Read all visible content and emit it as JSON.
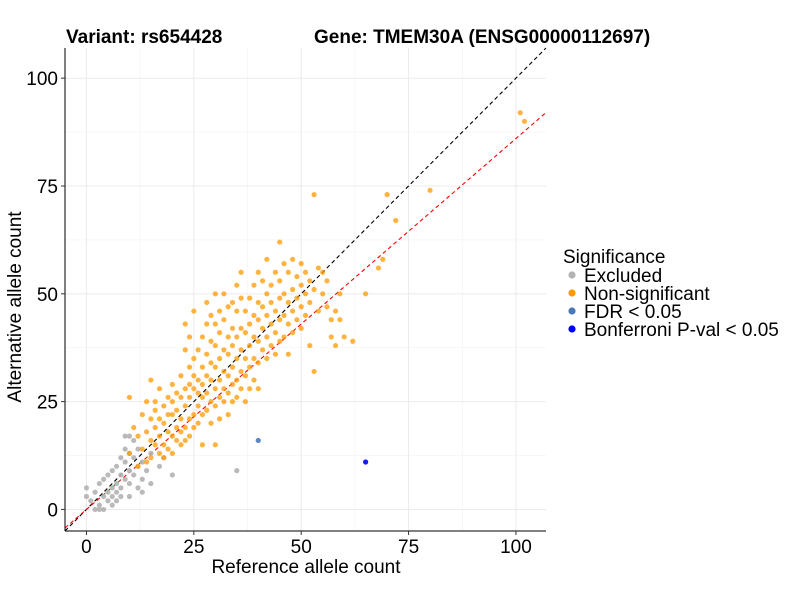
{
  "chart_data": {
    "type": "scatter",
    "title_left": "Variant: rs654428",
    "title_right": "Gene: TMEM30A (ENSG00000112697)",
    "xlabel": "Reference allele count",
    "ylabel": "Alternative allele count",
    "xlim": [
      -5,
      107
    ],
    "ylim": [
      -5,
      107
    ],
    "x_ticks": [
      0,
      25,
      50,
      75,
      100
    ],
    "y_ticks": [
      0,
      25,
      50,
      75,
      100
    ],
    "reference_lines": [
      {
        "name": "identity",
        "slope": 1,
        "intercept": 0,
        "color": "#000000",
        "style": "dashed"
      },
      {
        "name": "fitted",
        "slope": 0.86,
        "intercept": 0,
        "color": "#ff0000",
        "style": "dashed"
      }
    ],
    "legend": {
      "title": "Significance",
      "entries": [
        {
          "label": "Excluded",
          "color": "#b3b3b3"
        },
        {
          "label": "Non-significant",
          "color": "#ff9900"
        },
        {
          "label": "FDR < 0.05",
          "color": "#4a78b8"
        },
        {
          "label": "Bonferroni P-val < 0.05",
          "color": "#0000ff"
        }
      ]
    },
    "series": [
      {
        "name": "Excluded",
        "color": "#b3b3b3",
        "points": [
          [
            0,
            3
          ],
          [
            0,
            5
          ],
          [
            1,
            2
          ],
          [
            2,
            0
          ],
          [
            2,
            4
          ],
          [
            3,
            1
          ],
          [
            3,
            6
          ],
          [
            3,
            0
          ],
          [
            4,
            0
          ],
          [
            4,
            3
          ],
          [
            4,
            7
          ],
          [
            5,
            4
          ],
          [
            5,
            2
          ],
          [
            5,
            8
          ],
          [
            6,
            5
          ],
          [
            6,
            3
          ],
          [
            6,
            9
          ],
          [
            6,
            1
          ],
          [
            7,
            6
          ],
          [
            7,
            4
          ],
          [
            7,
            10
          ],
          [
            7,
            2
          ],
          [
            8,
            8
          ],
          [
            8,
            5
          ],
          [
            8,
            12
          ],
          [
            8,
            3
          ],
          [
            9,
            7
          ],
          [
            9,
            11
          ],
          [
            9,
            14
          ],
          [
            9,
            17
          ],
          [
            10,
            6
          ],
          [
            10,
            9
          ],
          [
            10,
            13
          ],
          [
            10,
            17
          ],
          [
            10,
            3
          ],
          [
            11,
            8
          ],
          [
            11,
            12
          ],
          [
            11,
            16
          ],
          [
            12,
            5
          ],
          [
            12,
            10
          ],
          [
            12,
            14
          ],
          [
            13,
            4
          ],
          [
            13,
            7
          ],
          [
            13,
            11
          ],
          [
            14,
            9
          ],
          [
            15,
            6
          ],
          [
            15,
            13
          ],
          [
            17,
            10
          ],
          [
            18,
            12
          ],
          [
            20,
            8
          ],
          [
            35,
            9
          ]
        ]
      },
      {
        "name": "Non-significant",
        "color": "#ff9900",
        "points": [
          [
            10,
            26
          ],
          [
            10,
            13
          ],
          [
            11,
            19
          ],
          [
            12,
            10
          ],
          [
            12,
            17
          ],
          [
            13,
            22
          ],
          [
            13,
            14
          ],
          [
            14,
            25
          ],
          [
            14,
            18
          ],
          [
            14,
            11
          ],
          [
            15,
            21
          ],
          [
            15,
            16
          ],
          [
            15,
            30
          ],
          [
            15,
            12
          ],
          [
            16,
            23
          ],
          [
            16,
            15
          ],
          [
            16,
            19
          ],
          [
            16,
            25
          ],
          [
            17,
            17
          ],
          [
            17,
            13
          ],
          [
            17,
            28
          ],
          [
            17,
            21
          ],
          [
            18,
            20
          ],
          [
            18,
            15
          ],
          [
            18,
            24
          ],
          [
            18,
            12
          ],
          [
            19,
            18
          ],
          [
            19,
            26
          ],
          [
            19,
            14
          ],
          [
            19,
            22
          ],
          [
            20,
            22
          ],
          [
            20,
            17
          ],
          [
            20,
            29
          ],
          [
            20,
            13
          ],
          [
            20,
            25
          ],
          [
            21,
            19
          ],
          [
            21,
            16
          ],
          [
            21,
            27
          ],
          [
            21,
            23
          ],
          [
            22,
            21
          ],
          [
            22,
            15
          ],
          [
            22,
            31
          ],
          [
            22,
            26
          ],
          [
            22,
            18
          ],
          [
            23,
            24
          ],
          [
            23,
            19
          ],
          [
            23,
            37
          ],
          [
            23,
            28
          ],
          [
            23,
            16
          ],
          [
            23,
            43
          ],
          [
            24,
            26
          ],
          [
            24,
            21
          ],
          [
            24,
            33
          ],
          [
            24,
            17
          ],
          [
            24,
            29
          ],
          [
            24,
            40
          ],
          [
            25,
            28
          ],
          [
            25,
            22
          ],
          [
            25,
            35
          ],
          [
            25,
            19
          ],
          [
            25,
            31
          ],
          [
            25,
            46
          ],
          [
            26,
            24
          ],
          [
            26,
            30
          ],
          [
            26,
            20
          ],
          [
            26,
            37
          ],
          [
            26,
            27
          ],
          [
            27,
            26
          ],
          [
            27,
            33
          ],
          [
            27,
            22
          ],
          [
            27,
            40
          ],
          [
            27,
            29
          ],
          [
            27,
            15
          ],
          [
            28,
            31
          ],
          [
            28,
            27
          ],
          [
            28,
            36
          ],
          [
            28,
            23
          ],
          [
            28,
            43
          ],
          [
            28,
            48
          ],
          [
            29,
            30
          ],
          [
            29,
            25
          ],
          [
            29,
            34
          ],
          [
            29,
            39
          ],
          [
            29,
            20
          ],
          [
            29,
            45
          ],
          [
            30,
            33
          ],
          [
            30,
            28
          ],
          [
            30,
            38
          ],
          [
            30,
            24
          ],
          [
            30,
            43
          ],
          [
            30,
            50
          ],
          [
            30,
            15
          ],
          [
            31,
            35
          ],
          [
            31,
            30
          ],
          [
            31,
            26
          ],
          [
            31,
            41
          ],
          [
            31,
            46
          ],
          [
            31,
            21
          ],
          [
            32,
            32
          ],
          [
            32,
            37
          ],
          [
            32,
            28
          ],
          [
            32,
            44
          ],
          [
            32,
            25
          ],
          [
            32,
            50
          ],
          [
            33,
            36
          ],
          [
            33,
            31
          ],
          [
            33,
            40
          ],
          [
            33,
            27
          ],
          [
            33,
            47
          ],
          [
            33,
            22
          ],
          [
            34,
            38
          ],
          [
            34,
            33
          ],
          [
            34,
            42
          ],
          [
            34,
            29
          ],
          [
            34,
            48
          ],
          [
            34,
            25
          ],
          [
            35,
            40
          ],
          [
            35,
            35
          ],
          [
            35,
            30
          ],
          [
            35,
            46
          ],
          [
            35,
            26
          ],
          [
            35,
            52
          ],
          [
            36,
            37
          ],
          [
            36,
            42
          ],
          [
            36,
            32
          ],
          [
            36,
            28
          ],
          [
            36,
            49
          ],
          [
            36,
            55
          ],
          [
            37,
            41
          ],
          [
            37,
            35
          ],
          [
            37,
            46
          ],
          [
            37,
            31
          ],
          [
            37,
            25
          ],
          [
            38,
            43
          ],
          [
            38,
            38
          ],
          [
            38,
            33
          ],
          [
            38,
            49
          ],
          [
            38,
            28
          ],
          [
            39,
            45
          ],
          [
            39,
            40
          ],
          [
            39,
            35
          ],
          [
            39,
            52
          ],
          [
            39,
            30
          ],
          [
            40,
            44
          ],
          [
            40,
            39
          ],
          [
            40,
            34
          ],
          [
            40,
            55
          ],
          [
            40,
            48
          ],
          [
            40,
            28
          ],
          [
            41,
            47
          ],
          [
            41,
            42
          ],
          [
            41,
            37
          ],
          [
            41,
            53
          ],
          [
            42,
            45
          ],
          [
            42,
            40
          ],
          [
            42,
            35
          ],
          [
            42,
            50
          ],
          [
            42,
            58
          ],
          [
            43,
            48
          ],
          [
            43,
            43
          ],
          [
            43,
            38
          ],
          [
            43,
            52
          ],
          [
            44,
            46
          ],
          [
            44,
            41
          ],
          [
            44,
            36
          ],
          [
            44,
            55
          ],
          [
            45,
            49
          ],
          [
            45,
            44
          ],
          [
            45,
            39
          ],
          [
            45,
            53
          ],
          [
            45,
            62
          ],
          [
            46,
            50
          ],
          [
            46,
            45
          ],
          [
            46,
            40
          ],
          [
            46,
            57
          ],
          [
            47,
            48
          ],
          [
            47,
            43
          ],
          [
            47,
            55
          ],
          [
            47,
            36
          ],
          [
            48,
            51
          ],
          [
            48,
            46
          ],
          [
            48,
            41
          ],
          [
            48,
            58
          ],
          [
            49,
            49
          ],
          [
            49,
            44
          ],
          [
            49,
            54
          ],
          [
            50,
            52
          ],
          [
            50,
            47
          ],
          [
            50,
            42
          ],
          [
            50,
            57
          ],
          [
            51,
            45
          ],
          [
            51,
            50
          ],
          [
            51,
            55
          ],
          [
            52,
            48
          ],
          [
            52,
            53
          ],
          [
            52,
            38
          ],
          [
            53,
            73
          ],
          [
            53,
            32
          ],
          [
            53,
            51
          ],
          [
            54,
            56
          ],
          [
            54,
            46
          ],
          [
            55,
            55
          ],
          [
            55,
            50
          ],
          [
            56,
            53
          ],
          [
            56,
            47
          ],
          [
            57,
            44
          ],
          [
            57,
            40
          ],
          [
            58,
            46
          ],
          [
            58,
            38
          ],
          [
            59,
            44
          ],
          [
            59,
            50
          ],
          [
            60,
            40
          ],
          [
            62,
            39
          ],
          [
            65,
            50
          ],
          [
            68,
            56
          ],
          [
            69,
            58
          ],
          [
            70,
            73
          ],
          [
            72,
            67
          ],
          [
            80,
            74
          ],
          [
            101,
            92
          ],
          [
            102,
            90
          ]
        ]
      },
      {
        "name": "FDR < 0.05",
        "color": "#4a78b8",
        "points": [
          [
            40,
            16
          ]
        ]
      },
      {
        "name": "Bonferroni P-val < 0.05",
        "color": "#0000ff",
        "points": [
          [
            65,
            11
          ]
        ]
      }
    ]
  }
}
